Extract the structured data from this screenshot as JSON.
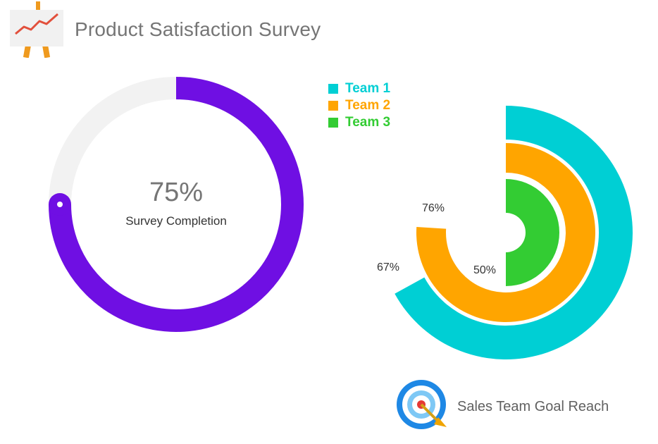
{
  "header": {
    "title": "Product Satisfaction Survey",
    "icon": "presentation-chart-icon"
  },
  "chart_data": [
    {
      "type": "progress-ring",
      "value": 75,
      "value_label": "75%",
      "label": "Survey Completion",
      "colors": {
        "fill": "#6f0fe3",
        "track": "#f2f2f2",
        "cap_dot": "#ffffff"
      }
    },
    {
      "type": "radial-bar",
      "ylim": [
        0,
        100
      ],
      "series": [
        {
          "name": "Team 1",
          "value": 67,
          "label": "67%",
          "color": "#00cfd4"
        },
        {
          "name": "Team 2",
          "value": 76,
          "label": "76%",
          "color": "#ffa500"
        },
        {
          "name": "Team 3",
          "value": 50,
          "label": "50%",
          "color": "#33cc33"
        }
      ],
      "legend_position": "top-left"
    }
  ],
  "footer": {
    "caption": "Sales Team Goal Reach",
    "icon": "target-arrow-icon"
  }
}
